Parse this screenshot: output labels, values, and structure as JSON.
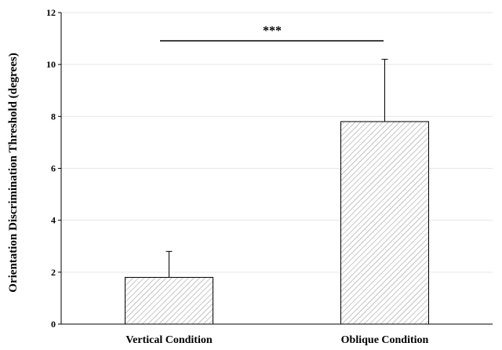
{
  "chart_data": {
    "type": "bar",
    "categories": [
      "Vertical Condition",
      "Oblique Condition"
    ],
    "values": [
      1.8,
      7.8
    ],
    "error_upper": [
      2.8,
      10.2
    ],
    "xlabel": "",
    "ylabel": "Orientation Discrimination Threshold (degrees)",
    "ylim": [
      0,
      12
    ],
    "yticks": [
      0,
      2,
      4,
      6,
      8,
      10,
      12
    ],
    "grid": true,
    "bar_pattern": "diagonal hatch",
    "significance": {
      "label": "***",
      "between": [
        "Vertical Condition",
        "Oblique Condition"
      ]
    }
  },
  "colors": {
    "bar_fill": "#ffffff",
    "bar_stroke": "#000000",
    "hatch": "#8c8c8c",
    "grid": "#e6e6e6",
    "axis": "#000000"
  }
}
